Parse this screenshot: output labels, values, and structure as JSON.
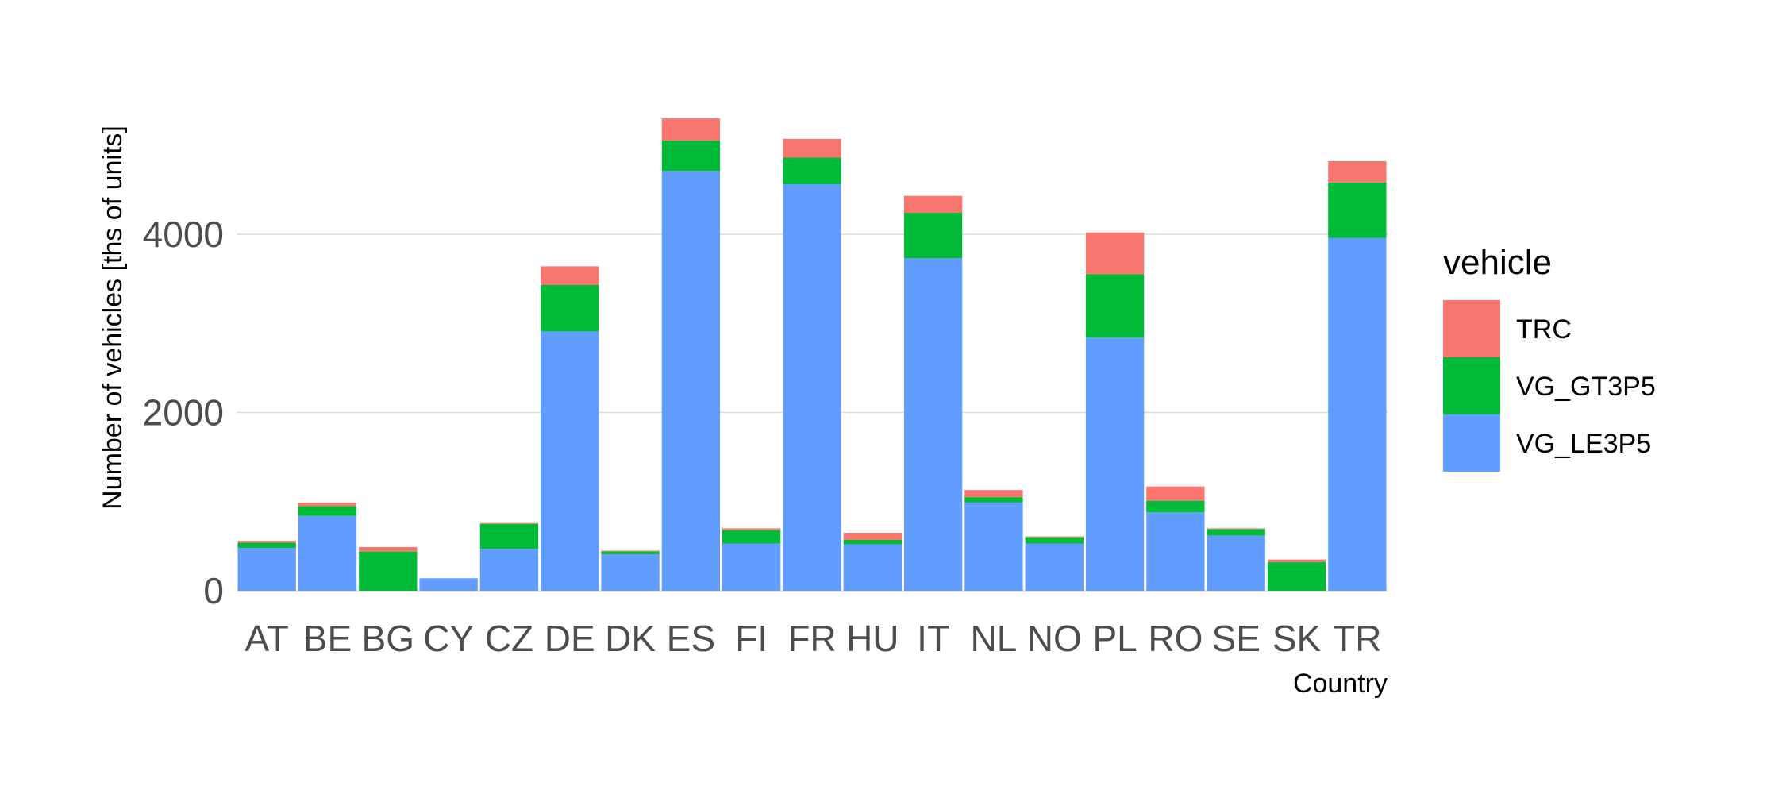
{
  "chart_data": {
    "type": "bar",
    "stacked": true,
    "title": "",
    "xlabel": "Country",
    "ylabel": "Number of vehicles [ths of units]",
    "ylim": [
      0,
      5800
    ],
    "yticks": [
      0,
      2000,
      4000
    ],
    "grid": true,
    "legend": {
      "title": "vehicle",
      "position": "right",
      "entries": [
        "TRC",
        "VG_GT3P5",
        "VG_LE3P5"
      ]
    },
    "categories": [
      "AT",
      "BE",
      "BG",
      "CY",
      "CZ",
      "DE",
      "DK",
      "ES",
      "FI",
      "FR",
      "HU",
      "IT",
      "NL",
      "NO",
      "PL",
      "RO",
      "SE",
      "SK",
      "TR"
    ],
    "series": [
      {
        "name": "VG_LE3P5",
        "color": "#619CFF",
        "values": [
          480,
          840,
          0,
          140,
          470,
          2910,
          410,
          4710,
          530,
          4560,
          520,
          3730,
          990,
          530,
          2840,
          880,
          620,
          0,
          3960
        ]
      },
      {
        "name": "VG_GT3P5",
        "color": "#00BA38",
        "values": [
          60,
          110,
          440,
          0,
          280,
          520,
          30,
          340,
          150,
          300,
          50,
          510,
          60,
          70,
          710,
          130,
          70,
          320,
          620
        ]
      },
      {
        "name": "TRC",
        "color": "#F8766D",
        "values": [
          20,
          40,
          50,
          0,
          10,
          210,
          10,
          250,
          20,
          210,
          80,
          190,
          80,
          10,
          470,
          160,
          10,
          30,
          240
        ]
      }
    ]
  }
}
